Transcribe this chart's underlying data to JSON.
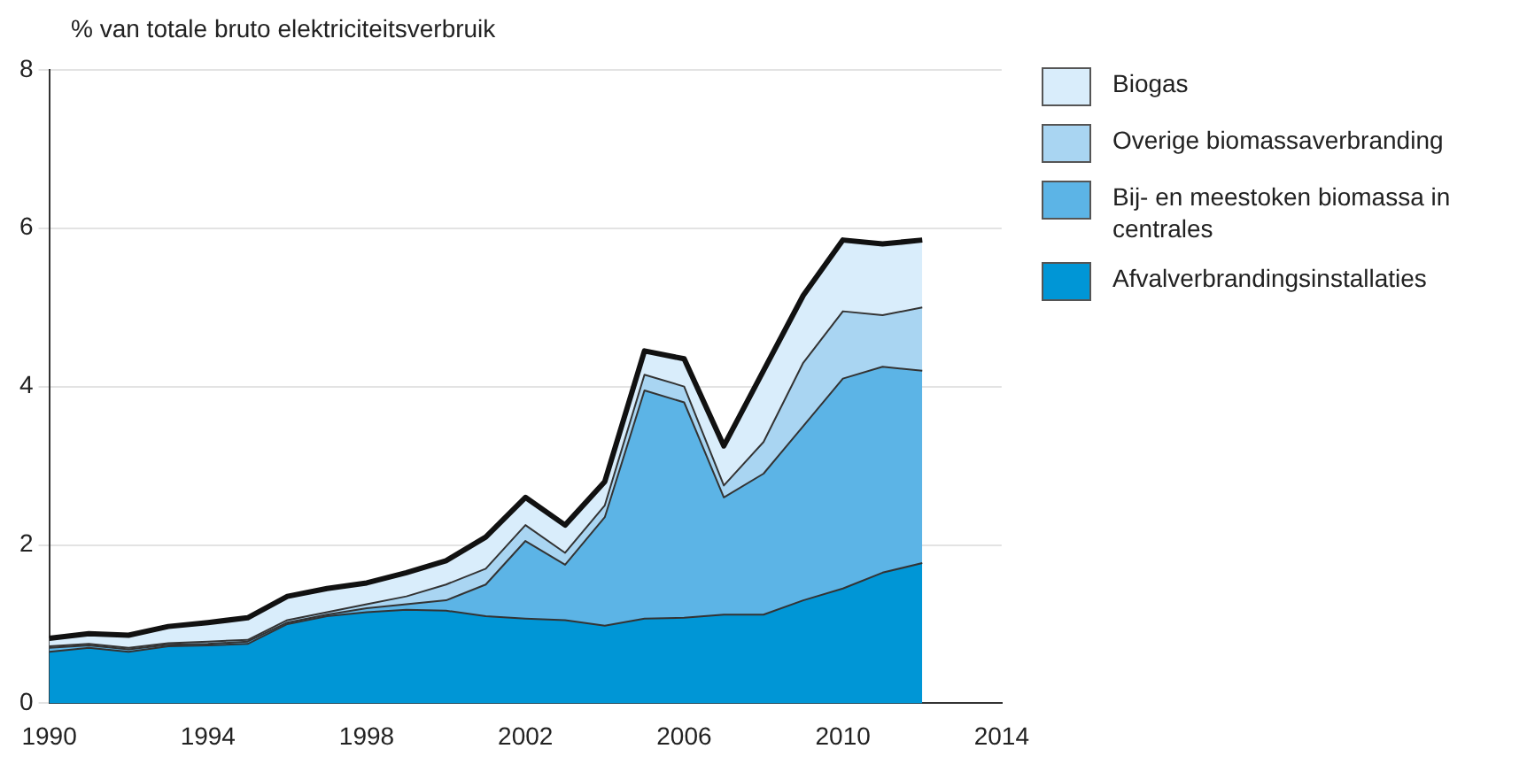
{
  "chart_data": {
    "type": "area",
    "stacked": true,
    "ylabel": "% van totale bruto elektriciteitsverbruik",
    "x": [
      1990,
      1991,
      1992,
      1993,
      1994,
      1995,
      1996,
      1997,
      1998,
      1999,
      2000,
      2001,
      2002,
      2003,
      2004,
      2005,
      2006,
      2007,
      2008,
      2009,
      2010,
      2011,
      2012
    ],
    "series": [
      {
        "name": "Afvalverbrandingsinstallaties",
        "color": "#0096d6",
        "values": [
          0.65,
          0.7,
          0.65,
          0.72,
          0.73,
          0.75,
          1.0,
          1.1,
          1.15,
          1.18,
          1.17,
          1.1,
          1.07,
          1.05,
          0.98,
          1.07,
          1.08,
          1.12,
          1.12,
          1.3,
          1.45,
          1.65,
          1.77
        ]
      },
      {
        "name": "Bij- en meestoken biomassa in centrales",
        "color": "#5cb4e6",
        "values": [
          0.05,
          0.03,
          0.03,
          0.02,
          0.02,
          0.03,
          0.02,
          0.02,
          0.05,
          0.07,
          0.13,
          0.4,
          0.98,
          0.7,
          1.37,
          2.88,
          2.72,
          1.48,
          1.78,
          2.2,
          2.65,
          2.6,
          2.43
        ]
      },
      {
        "name": "Overige biomassaverbranding",
        "color": "#a9d5f2",
        "values": [
          0.02,
          0.02,
          0.02,
          0.02,
          0.03,
          0.02,
          0.03,
          0.03,
          0.05,
          0.1,
          0.2,
          0.2,
          0.2,
          0.15,
          0.15,
          0.2,
          0.2,
          0.15,
          0.4,
          0.8,
          0.85,
          0.65,
          0.8
        ]
      },
      {
        "name": "Biogas",
        "color": "#d9edfb",
        "values": [
          0.1,
          0.13,
          0.16,
          0.21,
          0.24,
          0.28,
          0.3,
          0.3,
          0.27,
          0.3,
          0.3,
          0.4,
          0.35,
          0.35,
          0.3,
          0.3,
          0.35,
          0.5,
          0.9,
          0.85,
          0.9,
          0.9,
          0.85
        ]
      }
    ],
    "xlim": [
      1990,
      2014
    ],
    "xticks": [
      1990,
      1994,
      1998,
      2002,
      2006,
      2010,
      2014
    ],
    "ylim": [
      0,
      8
    ],
    "yticks": [
      0,
      2,
      4,
      6,
      8
    ],
    "grid": "y",
    "legend": "right"
  }
}
